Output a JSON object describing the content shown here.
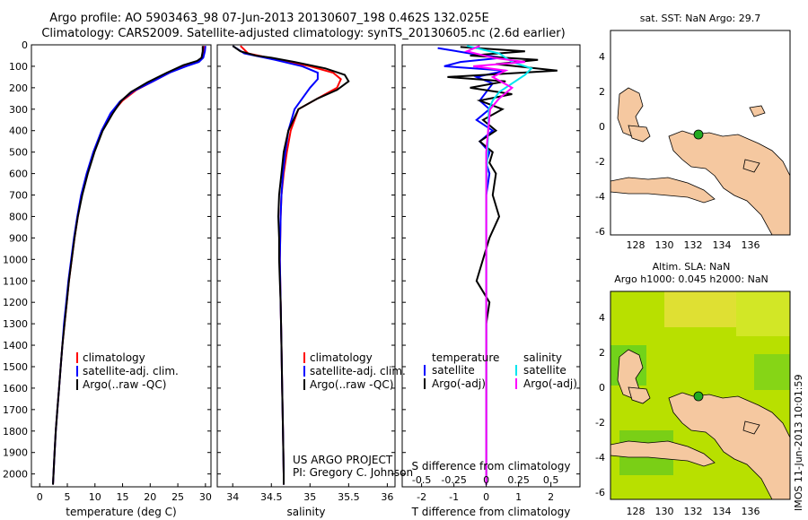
{
  "header": {
    "line1": "Argo profile: AO 5903463_98 07-Jun-2013 20130607_198 0.462S 132.025E",
    "line2": "Climatology: CARS2009. Satellite-adjusted climatology: synTS_20130605.nc (2.6d earlier)"
  },
  "colors": {
    "climatology": "#ff0000",
    "satellite": "#0000ff",
    "argo": "#000000",
    "sat_salinity": "#00e5ee",
    "argo_salinity": "#ff00ff",
    "land": "#f5c8a0",
    "marker": "#22aa22"
  },
  "chart_data": [
    {
      "type": "line",
      "id": "temperature",
      "xlabel": "temperature (deg C)",
      "ylabel": "",
      "xlim": [
        -1.5,
        31
      ],
      "ylim": [
        2060,
        0
      ],
      "xticks": [
        0,
        5,
        10,
        15,
        20,
        25,
        30
      ],
      "yticks": [
        0,
        100,
        200,
        300,
        400,
        500,
        600,
        700,
        800,
        900,
        1000,
        1100,
        1200,
        1300,
        1400,
        1500,
        1600,
        1700,
        1800,
        1900,
        2000
      ],
      "legend": [
        "climatology",
        "satellite-adj. clim.",
        "Argo(..raw -QC)"
      ],
      "series": [
        {
          "name": "climatology",
          "color": "#ff0000",
          "points": [
            [
              29.8,
              5
            ],
            [
              29.6,
              30
            ],
            [
              29.3,
              60
            ],
            [
              28.5,
              80
            ],
            [
              26,
              100
            ],
            [
              23.5,
              130
            ],
            [
              20.5,
              170
            ],
            [
              17.5,
              210
            ],
            [
              15,
              260
            ],
            [
              13,
              320
            ],
            [
              11.3,
              400
            ],
            [
              9.8,
              500
            ],
            [
              8.6,
              600
            ],
            [
              7.6,
              700
            ],
            [
              6.9,
              800
            ],
            [
              6.3,
              900
            ],
            [
              5.8,
              1000
            ],
            [
              5.3,
              1100
            ],
            [
              4.9,
              1200
            ],
            [
              4.5,
              1300
            ],
            [
              4.1,
              1400
            ],
            [
              3.8,
              1500
            ],
            [
              3.5,
              1600
            ],
            [
              3.2,
              1700
            ],
            [
              2.9,
              1800
            ],
            [
              2.7,
              1900
            ],
            [
              2.5,
              2000
            ],
            [
              2.4,
              2050
            ]
          ]
        },
        {
          "name": "satellite-adj. clim.",
          "color": "#0000ff",
          "points": [
            [
              30,
              5
            ],
            [
              29.9,
              30
            ],
            [
              29.6,
              60
            ],
            [
              28.8,
              80
            ],
            [
              26.5,
              100
            ],
            [
              23.5,
              130
            ],
            [
              20.5,
              170
            ],
            [
              17,
              215
            ],
            [
              14.5,
              265
            ],
            [
              12.8,
              320
            ],
            [
              11.2,
              400
            ],
            [
              9.7,
              500
            ],
            [
              8.5,
              600
            ],
            [
              7.5,
              700
            ],
            [
              6.8,
              800
            ],
            [
              6.2,
              900
            ],
            [
              5.7,
              1000
            ],
            [
              5.2,
              1100
            ],
            [
              4.8,
              1200
            ],
            [
              4.4,
              1300
            ],
            [
              4.1,
              1400
            ],
            [
              3.8,
              1500
            ],
            [
              3.5,
              1600
            ],
            [
              3.2,
              1700
            ],
            [
              2.9,
              1800
            ],
            [
              2.7,
              1900
            ],
            [
              2.5,
              2000
            ],
            [
              2.4,
              2050
            ]
          ]
        },
        {
          "name": "Argo(..raw -QC)",
          "color": "#000000",
          "points": [
            [
              29.5,
              5
            ],
            [
              29.5,
              30
            ],
            [
              29.3,
              60
            ],
            [
              28.5,
              75
            ],
            [
              26,
              95
            ],
            [
              23,
              130
            ],
            [
              19.5,
              175
            ],
            [
              16.5,
              220
            ],
            [
              14.8,
              260
            ],
            [
              13.2,
              320
            ],
            [
              11.4,
              400
            ],
            [
              9.9,
              500
            ],
            [
              8.7,
              600
            ],
            [
              7.7,
              700
            ],
            [
              6.9,
              800
            ],
            [
              6.3,
              900
            ],
            [
              5.8,
              1000
            ],
            [
              5.3,
              1100
            ],
            [
              4.9,
              1200
            ],
            [
              4.5,
              1300
            ],
            [
              4.1,
              1400
            ],
            [
              3.8,
              1500
            ],
            [
              3.5,
              1600
            ],
            [
              3.2,
              1700
            ],
            [
              2.9,
              1800
            ],
            [
              2.7,
              1900
            ],
            [
              2.5,
              2000
            ],
            [
              2.4,
              2050
            ]
          ]
        }
      ]
    },
    {
      "type": "line",
      "id": "salinity",
      "xlabel": "salinity",
      "ylabel": "",
      "xlim": [
        33.8,
        36.1
      ],
      "ylim": [
        2060,
        0
      ],
      "xticks": [
        34,
        34.5,
        35,
        35.5,
        36
      ],
      "xticklabels": [
        "34",
        "34.5",
        "35",
        "35.5",
        "36"
      ],
      "legend": [
        "climatology",
        "satellite-adj. clim.",
        "Argo(..raw -QC)"
      ],
      "series": [
        {
          "name": "climatology",
          "color": "#ff0000",
          "points": [
            [
              34.1,
              5
            ],
            [
              34.2,
              40
            ],
            [
              34.6,
              70
            ],
            [
              35.0,
              100
            ],
            [
              35.3,
              130
            ],
            [
              35.4,
              160
            ],
            [
              35.35,
              200
            ],
            [
              35.1,
              250
            ],
            [
              34.85,
              300
            ],
            [
              34.75,
              400
            ],
            [
              34.7,
              500
            ],
            [
              34.66,
              600
            ],
            [
              34.63,
              700
            ],
            [
              34.62,
              800
            ],
            [
              34.61,
              1000
            ],
            [
              34.62,
              1200
            ],
            [
              34.63,
              1400
            ],
            [
              34.64,
              1600
            ],
            [
              34.65,
              1800
            ],
            [
              34.66,
              2000
            ],
            [
              34.66,
              2050
            ]
          ]
        },
        {
          "name": "satellite-adj. clim.",
          "color": "#0000ff",
          "points": [
            [
              34.0,
              5
            ],
            [
              34.15,
              40
            ],
            [
              34.55,
              70
            ],
            [
              34.9,
              100
            ],
            [
              35.1,
              130
            ],
            [
              35.1,
              160
            ],
            [
              35.0,
              200
            ],
            [
              34.9,
              250
            ],
            [
              34.8,
              300
            ],
            [
              34.72,
              400
            ],
            [
              34.68,
              500
            ],
            [
              34.65,
              600
            ],
            [
              34.63,
              700
            ],
            [
              34.62,
              800
            ],
            [
              34.61,
              1000
            ],
            [
              34.62,
              1200
            ],
            [
              34.63,
              1400
            ],
            [
              34.64,
              1600
            ],
            [
              34.65,
              1800
            ],
            [
              34.66,
              2000
            ],
            [
              34.66,
              2050
            ]
          ]
        },
        {
          "name": "Argo(..raw -QC)",
          "color": "#000000",
          "points": [
            [
              34.0,
              5
            ],
            [
              34.1,
              30
            ],
            [
              34.3,
              50
            ],
            [
              34.5,
              60
            ],
            [
              34.8,
              80
            ],
            [
              35.2,
              110
            ],
            [
              35.45,
              140
            ],
            [
              35.5,
              170
            ],
            [
              35.35,
              210
            ],
            [
              35.1,
              250
            ],
            [
              34.85,
              300
            ],
            [
              34.72,
              400
            ],
            [
              34.66,
              500
            ],
            [
              34.63,
              600
            ],
            [
              34.6,
              700
            ],
            [
              34.59,
              800
            ],
            [
              34.6,
              900
            ],
            [
              34.6,
              1000
            ],
            [
              34.61,
              1100
            ],
            [
              34.62,
              1200
            ],
            [
              34.63,
              1400
            ],
            [
              34.64,
              1600
            ],
            [
              34.65,
              1800
            ],
            [
              34.66,
              2000
            ],
            [
              34.66,
              2050
            ]
          ]
        }
      ]
    },
    {
      "type": "line",
      "id": "difference",
      "xlabel": "T difference from climatology",
      "xlabel_top": "S difference from climatology",
      "xlim": [
        -2.6,
        2.9
      ],
      "ylim": [
        2060,
        0
      ],
      "xticks": [
        -2,
        -1,
        0,
        1,
        2
      ],
      "sticks": [
        -0.5,
        -0.25,
        0,
        0.25,
        0.5
      ],
      "sticklabels": [
        "-0.5",
        "-0.25",
        "0",
        "0.25",
        "0.5"
      ],
      "legend_titles": [
        "temperature",
        "salinity"
      ],
      "legend": [
        "satellite",
        "Argo(-adj)",
        "satellite",
        "Argo(-adj)"
      ],
      "series": [
        {
          "name": "temperature satellite",
          "color": "#0000ff",
          "points": [
            [
              -1.5,
              15
            ],
            [
              -0.5,
              40
            ],
            [
              0.5,
              60
            ],
            [
              -0.8,
              80
            ],
            [
              -1.3,
              100
            ],
            [
              0.6,
              120
            ],
            [
              -0.3,
              150
            ],
            [
              0.2,
              180
            ],
            [
              0,
              220
            ],
            [
              -0.2,
              260
            ],
            [
              0.1,
              300
            ],
            [
              -0.3,
              350
            ],
            [
              0.2,
              400
            ],
            [
              -0.2,
              450
            ],
            [
              0.1,
              500
            ],
            [
              0,
              550
            ],
            [
              0.1,
              600
            ],
            [
              0,
              700
            ],
            [
              0,
              800
            ],
            [
              0,
              1000
            ],
            [
              0,
              1200
            ],
            [
              0,
              1500
            ],
            [
              0,
              2050
            ]
          ]
        },
        {
          "name": "temperature Argo(-adj)",
          "color": "#000000",
          "points": [
            [
              -0.8,
              10
            ],
            [
              1.2,
              30
            ],
            [
              -0.5,
              50
            ],
            [
              1.6,
              70
            ],
            [
              0.3,
              90
            ],
            [
              2.2,
              120
            ],
            [
              -1.2,
              150
            ],
            [
              0.6,
              170
            ],
            [
              -0.5,
              200
            ],
            [
              0.8,
              230
            ],
            [
              -0.2,
              260
            ],
            [
              0.5,
              300
            ],
            [
              -0.1,
              350
            ],
            [
              0.3,
              400
            ],
            [
              -0.2,
              450
            ],
            [
              0.2,
              500
            ],
            [
              0.1,
              550
            ],
            [
              0.3,
              600
            ],
            [
              0.2,
              700
            ],
            [
              0.4,
              800
            ],
            [
              0.1,
              900
            ],
            [
              -0.1,
              1000
            ],
            [
              -0.3,
              1100
            ],
            [
              -0.1,
              1150
            ],
            [
              0.1,
              1200
            ],
            [
              0,
              1300
            ],
            [
              0,
              1500
            ],
            [
              0,
              2050
            ]
          ]
        },
        {
          "name": "salinity satellite",
          "color": "#00e5ee",
          "points": [
            [
              -0.15,
              5
            ],
            [
              0.1,
              40
            ],
            [
              0.2,
              80
            ],
            [
              0.35,
              110
            ],
            [
              0.3,
              140
            ],
            [
              0.2,
              180
            ],
            [
              0.1,
              220
            ],
            [
              0.05,
              260
            ],
            [
              0.02,
              300
            ],
            [
              0.01,
              500
            ],
            [
              0,
              700
            ],
            [
              0,
              1000
            ],
            [
              0,
              2050
            ]
          ]
        },
        {
          "name": "salinity Argo(-adj)",
          "color": "#ff00ff",
          "points": [
            [
              -0.05,
              5
            ],
            [
              -0.15,
              30
            ],
            [
              0.05,
              60
            ],
            [
              0.3,
              80
            ],
            [
              -0.1,
              100
            ],
            [
              0.15,
              120
            ],
            [
              0.05,
              150
            ],
            [
              0.2,
              200
            ],
            [
              0.1,
              250
            ],
            [
              0.03,
              300
            ],
            [
              0,
              500
            ],
            [
              0,
              700
            ],
            [
              0,
              800
            ],
            [
              0,
              2050
            ]
          ]
        }
      ]
    }
  ],
  "maps": {
    "sst": {
      "title": "sat. SST: NaN Argo: 29.7",
      "xticks": [
        "128",
        "130",
        "132",
        "134",
        "136"
      ],
      "yticks": [
        "4",
        "2",
        "0",
        "-2",
        "-4",
        "-6"
      ]
    },
    "sla": {
      "title1": "Altim. SLA: NaN",
      "title2": "Argo h1000: 0.045 h2000: NaN",
      "xticks": [
        "128",
        "130",
        "132",
        "134",
        "136"
      ],
      "yticks": [
        "4",
        "2",
        "0",
        "-2",
        "-4",
        "-6"
      ],
      "side_label": "IMOS 11-Jun-2013 10:01:59"
    }
  },
  "credit": {
    "line1": "US ARGO PROJECT",
    "line2": "PI: Gregory C. Johnson"
  }
}
